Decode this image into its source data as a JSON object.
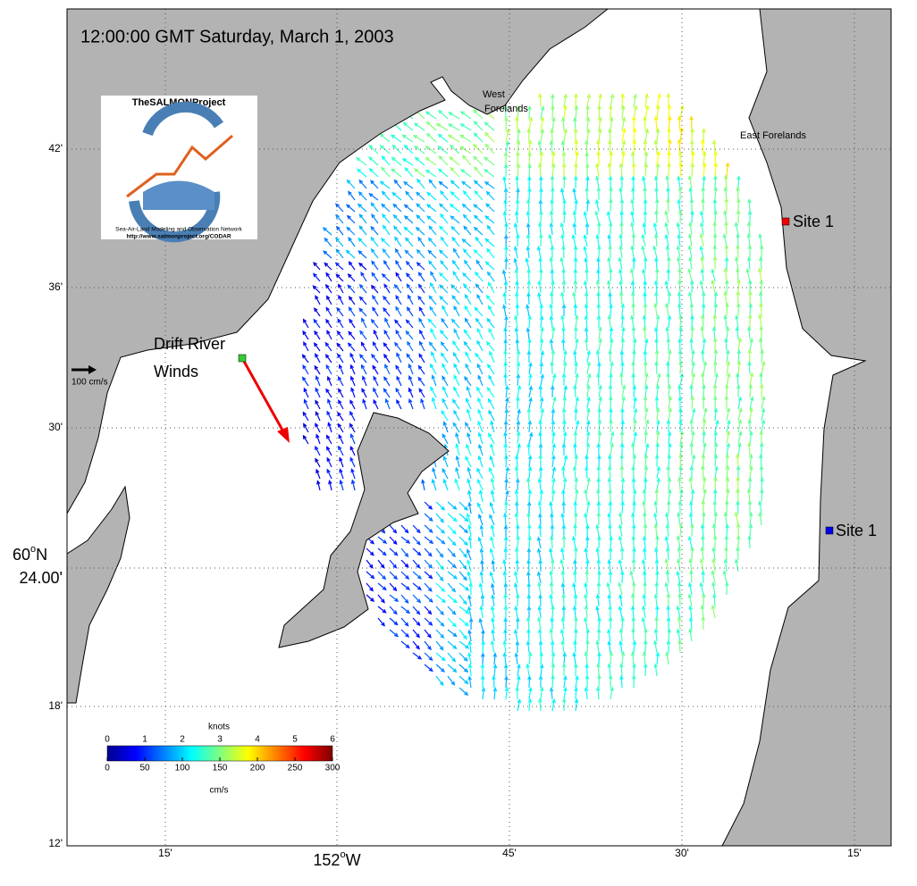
{
  "title": "12:00:00 GMT Saturday, March 1, 2003",
  "logo": {
    "name": "TheSALMONProject",
    "network": "Sea-Air-Land Modeling and Observation Network",
    "url": "http://www.salmonproject.org/CODAR"
  },
  "places": {
    "west_forelands": [
      "West",
      "Forelands"
    ],
    "east_forelands": "East Forelands",
    "site_north": "Site 1",
    "site_south": "Site 1",
    "drift_river": [
      "Drift River",
      "Winds"
    ]
  },
  "scale_arrow_label": "100 cm/s",
  "y_axis_labels": [
    "42'",
    "36'",
    "30'",
    "18'",
    "12'"
  ],
  "y_axis_main": {
    "deg": "60",
    "sup": "o",
    "hem": "N",
    "min": "24.00'"
  },
  "x_axis_labels": [
    "15'",
    "45'",
    "30'",
    "15'"
  ],
  "x_axis_main": {
    "deg": "152",
    "sup": "o",
    "hem": "W"
  },
  "colorbar": {
    "top_title": "knots",
    "top_ticks": [
      0,
      1,
      2,
      3,
      4,
      5,
      6
    ],
    "bottom_ticks": [
      0,
      50,
      100,
      150,
      200,
      250,
      300
    ],
    "bottom_title": "cm/s",
    "lim": [
      0,
      300
    ]
  }
}
